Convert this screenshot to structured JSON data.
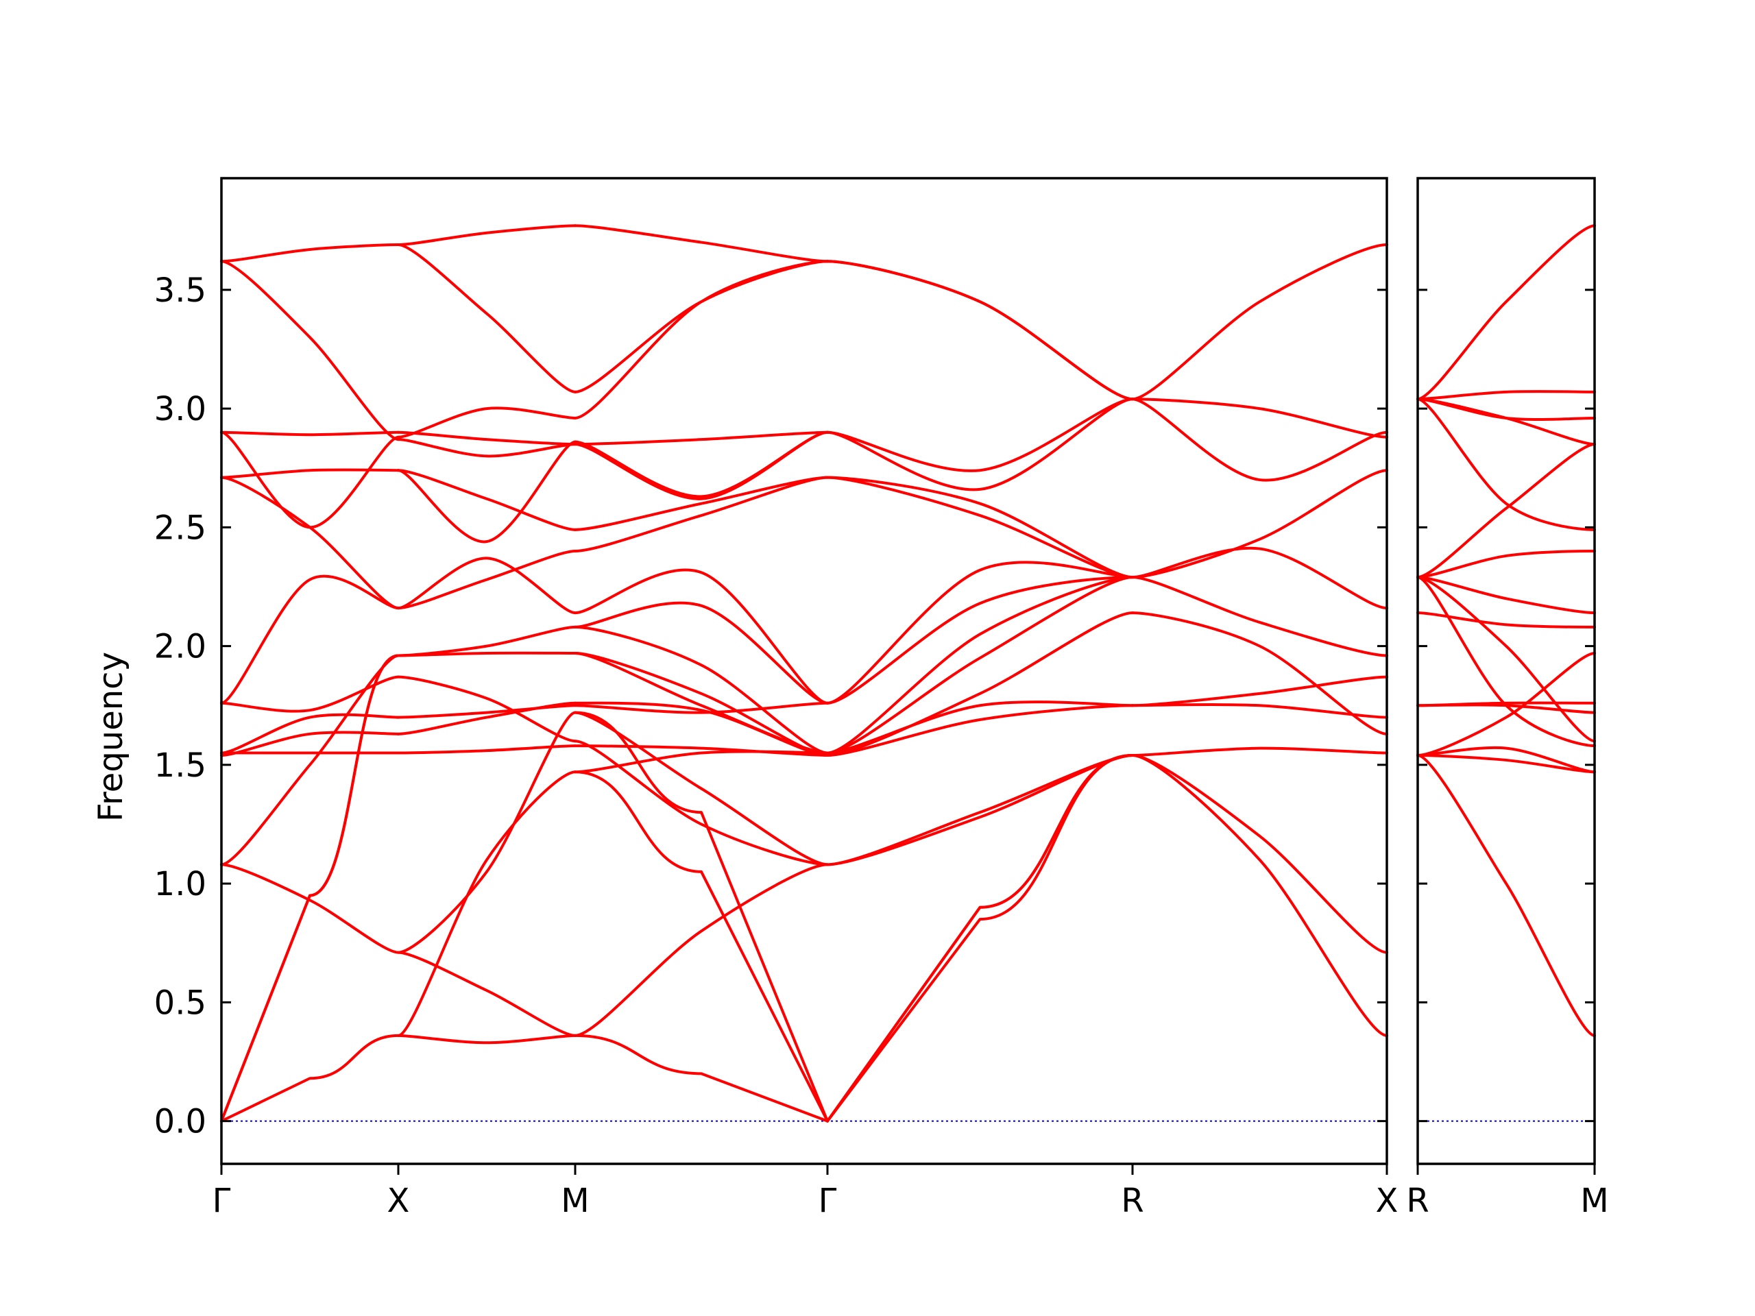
{
  "chart_data": {
    "type": "line",
    "ylabel": "Frequency",
    "ylim": [
      -0.18,
      3.97
    ],
    "yticks": [
      "0.0",
      "0.5",
      "1.0",
      "1.5",
      "2.0",
      "2.5",
      "3.0",
      "3.5"
    ],
    "grid": false,
    "colors": {
      "bands": "#ff0000",
      "zero_line": "#0000cc",
      "frame": "#000000"
    },
    "panels": [
      {
        "name": "left",
        "x_labels": [
          "Γ",
          "X",
          "M",
          "Γ",
          "R",
          "X"
        ],
        "segments": [
          {
            "from": "Γ",
            "to": "X",
            "bands": [
              [
                0.0,
                0.18,
                0.36
              ],
              [
                0.0,
                0.95,
                1.96
              ],
              [
                0.0,
                0.95,
                1.96
              ],
              [
                1.08,
                0.93,
                0.71
              ],
              [
                1.08,
                1.5,
                1.96
              ],
              [
                1.55,
                1.55,
                1.55
              ],
              [
                1.54,
                1.63,
                1.63
              ],
              [
                1.55,
                1.7,
                1.7
              ],
              [
                1.76,
                1.73,
                1.87
              ],
              [
                1.76,
                2.28,
                2.16
              ],
              [
                2.71,
                2.5,
                2.16
              ],
              [
                2.71,
                2.74,
                2.74
              ],
              [
                2.9,
                2.5,
                2.88
              ],
              [
                2.9,
                2.89,
                2.9
              ],
              [
                3.62,
                3.3,
                2.87
              ],
              [
                3.62,
                3.67,
                3.69
              ]
            ]
          },
          {
            "from": "X",
            "to": "M",
            "bands": [
              [
                0.36,
                0.33,
                0.36
              ],
              [
                0.36,
                1.1,
                1.47
              ],
              [
                0.71,
                1.05,
                1.72
              ],
              [
                0.71,
                0.55,
                0.36
              ],
              [
                1.55,
                1.56,
                1.58
              ],
              [
                1.63,
                1.7,
                1.76
              ],
              [
                1.7,
                1.72,
                1.75
              ],
              [
                1.87,
                1.78,
                1.6
              ],
              [
                1.96,
                1.97,
                1.97
              ],
              [
                1.96,
                2.0,
                2.08
              ],
              [
                2.16,
                2.37,
                2.14
              ],
              [
                2.16,
                2.28,
                2.4
              ],
              [
                2.74,
                2.44,
                2.86
              ],
              [
                2.74,
                2.62,
                2.49
              ],
              [
                2.87,
                2.8,
                2.85
              ],
              [
                2.88,
                3.0,
                2.96
              ],
              [
                2.9,
                2.87,
                2.85
              ],
              [
                3.69,
                3.4,
                3.07
              ],
              [
                3.69,
                3.74,
                3.77
              ]
            ]
          },
          {
            "from": "M",
            "to": "Γ",
            "bands": [
              [
                0.36,
                0.2,
                0.0
              ],
              [
                0.36,
                0.8,
                1.08
              ],
              [
                1.47,
                1.05,
                0.0
              ],
              [
                1.72,
                1.3,
                0.0
              ],
              [
                1.47,
                1.55,
                1.55
              ],
              [
                1.58,
                1.57,
                1.54
              ],
              [
                1.6,
                1.25,
                1.08
              ],
              [
                1.72,
                1.4,
                1.08
              ],
              [
                1.75,
                1.72,
                1.76
              ],
              [
                1.76,
                1.73,
                1.54
              ],
              [
                1.97,
                1.8,
                1.54
              ],
              [
                1.97,
                1.75,
                1.55
              ],
              [
                2.08,
                1.92,
                1.55
              ],
              [
                2.08,
                2.17,
                1.76
              ],
              [
                2.14,
                2.31,
                1.76
              ],
              [
                2.4,
                2.55,
                2.71
              ],
              [
                2.49,
                2.6,
                2.71
              ],
              [
                2.85,
                2.62,
                2.9
              ],
              [
                2.86,
                2.63,
                2.9
              ],
              [
                2.85,
                2.87,
                2.9
              ],
              [
                3.07,
                3.45,
                3.62
              ],
              [
                2.96,
                3.45,
                3.62
              ],
              [
                3.77,
                3.7,
                3.62
              ]
            ]
          },
          {
            "from": "Γ",
            "to": "R",
            "bands": [
              [
                0.0,
                0.85,
                1.54
              ],
              [
                0.0,
                0.9,
                1.54
              ],
              [
                0.0,
                0.9,
                1.54
              ],
              [
                1.08,
                1.3,
                1.54
              ],
              [
                1.08,
                1.28,
                1.54
              ],
              [
                1.54,
                1.8,
                2.14
              ],
              [
                1.54,
                1.69,
                1.75
              ],
              [
                1.55,
                1.75,
                1.75
              ],
              [
                1.55,
                1.95,
                2.29
              ],
              [
                1.55,
                2.05,
                2.29
              ],
              [
                1.76,
                2.32,
                2.29
              ],
              [
                1.76,
                2.18,
                2.29
              ],
              [
                2.71,
                2.6,
                2.29
              ],
              [
                2.71,
                2.55,
                2.29
              ],
              [
                2.9,
                2.74,
                3.04
              ],
              [
                2.9,
                2.66,
                3.04
              ],
              [
                3.62,
                3.45,
                3.04
              ],
              [
                3.62,
                3.45,
                3.04
              ]
            ]
          },
          {
            "from": "R",
            "to": "X",
            "bands": [
              [
                1.54,
                1.1,
                0.36
              ],
              [
                1.54,
                1.2,
                0.71
              ],
              [
                1.54,
                1.57,
                1.55
              ],
              [
                1.75,
                1.8,
                1.87
              ],
              [
                1.75,
                1.75,
                1.7
              ],
              [
                2.14,
                2.0,
                1.63
              ],
              [
                2.29,
                2.1,
                1.96
              ],
              [
                2.29,
                2.41,
                2.16
              ],
              [
                2.29,
                2.45,
                2.74
              ],
              [
                3.04,
                3.0,
                2.88
              ],
              [
                3.04,
                2.7,
                2.9
              ],
              [
                3.04,
                3.45,
                3.69
              ]
            ]
          }
        ]
      },
      {
        "name": "right",
        "x_labels": [
          "R",
          "M"
        ],
        "segments": [
          {
            "from": "R",
            "to": "M",
            "bands": [
              [
                1.54,
                1.0,
                0.36
              ],
              [
                1.54,
                1.57,
                1.47
              ],
              [
                1.54,
                1.52,
                1.47
              ],
              [
                1.54,
                1.7,
                1.97
              ],
              [
                1.75,
                1.75,
                1.72
              ],
              [
                1.75,
                1.76,
                1.76
              ],
              [
                2.14,
                2.09,
                2.08
              ],
              [
                2.29,
                2.2,
                2.14
              ],
              [
                2.29,
                1.75,
                1.58
              ],
              [
                2.29,
                2.0,
                1.6
              ],
              [
                2.29,
                2.38,
                2.4
              ],
              [
                2.29,
                2.58,
                2.85
              ],
              [
                3.04,
                2.6,
                2.49
              ],
              [
                3.04,
                2.96,
                2.85
              ],
              [
                3.04,
                2.96,
                2.96
              ],
              [
                3.04,
                3.07,
                3.07
              ],
              [
                3.04,
                3.45,
                3.77
              ]
            ]
          }
        ]
      }
    ]
  }
}
